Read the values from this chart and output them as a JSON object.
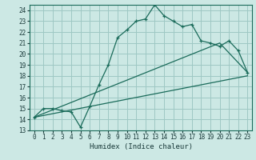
{
  "xlabel": "Humidex (Indice chaleur)",
  "bg_color": "#cce8e4",
  "grid_color": "#9ec8c4",
  "line_color": "#1a6b5a",
  "xlim": [
    -0.5,
    23.5
  ],
  "ylim": [
    13,
    24.5
  ],
  "xticks": [
    0,
    1,
    2,
    3,
    4,
    5,
    6,
    7,
    8,
    9,
    10,
    11,
    12,
    13,
    14,
    15,
    16,
    17,
    18,
    19,
    20,
    21,
    22,
    23
  ],
  "yticks": [
    13,
    14,
    15,
    16,
    17,
    18,
    19,
    20,
    21,
    22,
    23,
    24
  ],
  "curve1_x": [
    0,
    1,
    2,
    3,
    4,
    5,
    6,
    7,
    8,
    9,
    10,
    11,
    12,
    13,
    14,
    15,
    16,
    17,
    18,
    19,
    20,
    21,
    22,
    23
  ],
  "curve1_y": [
    14.2,
    15.0,
    15.0,
    14.8,
    14.7,
    13.3,
    15.2,
    17.2,
    19.0,
    21.5,
    22.2,
    23.0,
    23.2,
    24.5,
    23.5,
    23.0,
    22.5,
    22.7,
    21.2,
    21.0,
    20.7,
    21.2,
    20.3,
    18.3
  ],
  "curve2_x": [
    0,
    23
  ],
  "curve2_y": [
    14.2,
    18.0
  ],
  "curve3_x": [
    0,
    20,
    23
  ],
  "curve3_y": [
    14.2,
    21.0,
    18.3
  ],
  "marker_size": 3.5,
  "linewidth": 0.9,
  "tick_fontsize": 5.5,
  "xlabel_fontsize": 6.5
}
